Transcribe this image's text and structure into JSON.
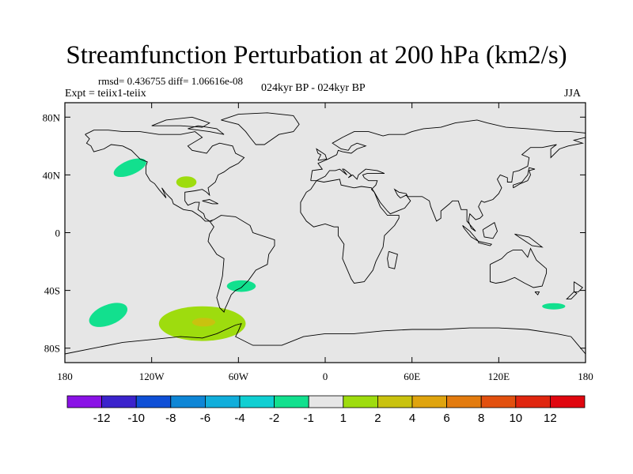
{
  "title": "Streamfunction Perturbation at 200 hPa (km2/s)",
  "stats": "rmsd= 0.436755  diff= 1.06616e-08",
  "expt": "Expt = teiix1-teiix",
  "period": "024kyr BP - 024kyr BP",
  "season": "JJA",
  "axes": {
    "lat_ticks": [
      "80N",
      "40N",
      "0",
      "40S",
      "80S"
    ],
    "lat_values": [
      80,
      40,
      0,
      -40,
      -80
    ],
    "lon_ticks": [
      "180",
      "120W",
      "60W",
      "0",
      "60E",
      "120E",
      "180"
    ],
    "lon_values": [
      -180,
      -120,
      -60,
      0,
      60,
      120,
      180
    ],
    "lat_range": [
      -90,
      90
    ],
    "lon_range": [
      -180,
      180
    ]
  },
  "map_background": "#e6e6e6",
  "colorbar": {
    "labels": [
      "-12",
      "-10",
      "-8",
      "-6",
      "-4",
      "-2",
      "-1",
      "1",
      "2",
      "4",
      "6",
      "8",
      "10",
      "12"
    ],
    "colors": [
      "#8a12e6",
      "#3b23cc",
      "#0f4fd6",
      "#0e86d6",
      "#11aedb",
      "#10cfd2",
      "#12e08e",
      "#e6e6e6",
      "#9edc0e",
      "#c9c20f",
      "#dfa40e",
      "#e37b0f",
      "#e2500f",
      "#e0260f",
      "#e0060f"
    ]
  },
  "anomalies": [
    {
      "lon": -135,
      "lat": 45,
      "rx": 12,
      "ry": 5,
      "color": "#12e08e",
      "class": "-2 to -1"
    },
    {
      "lon": -96,
      "lat": 35,
      "rx": 7,
      "ry": 4,
      "color": "#9edc0e",
      "class": "1 to 2"
    },
    {
      "lon": -58,
      "lat": -37,
      "rx": 10,
      "ry": 4,
      "color": "#12e08e",
      "class": "-2 to -1"
    },
    {
      "lon": -150,
      "lat": -57,
      "rx": 14,
      "ry": 7,
      "color": "#12e08e",
      "class": "-2 to -1"
    },
    {
      "lon": -85,
      "lat": -63,
      "rx": 30,
      "ry": 12,
      "color": "#9edc0e",
      "class": "1 to 2"
    },
    {
      "lon": -84,
      "lat": -62,
      "rx": 8,
      "ry": 3,
      "color": "#c9c20f",
      "class": "2 to 4"
    },
    {
      "lon": 158,
      "lat": -51,
      "rx": 8,
      "ry": 2.2,
      "color": "#12e08e",
      "class": "-2 to -1"
    }
  ]
}
